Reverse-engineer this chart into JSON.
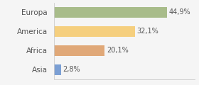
{
  "categories": [
    "Europa",
    "America",
    "Africa",
    "Asia"
  ],
  "values": [
    44.9,
    32.1,
    20.1,
    2.8
  ],
  "labels": [
    "44,9%",
    "32,1%",
    "20,1%",
    "2,8%"
  ],
  "bar_colors": [
    "#a8bc8a",
    "#f5cf7e",
    "#e0a878",
    "#7b9fd4"
  ],
  "background_color": "#f5f5f5",
  "xlim": [
    0,
    56
  ],
  "bar_height": 0.55,
  "label_fontsize": 7,
  "category_fontsize": 7.5
}
